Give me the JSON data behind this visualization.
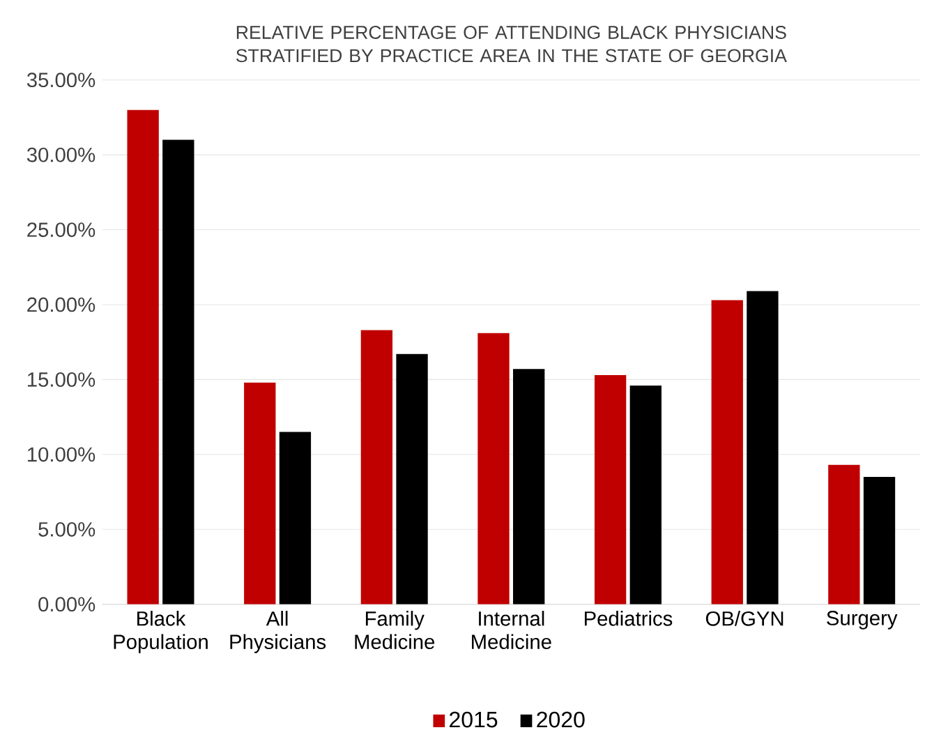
{
  "chart_data": {
    "type": "bar",
    "title": "RELATIVE PERCENTAGE OF ATTENDING BLACK PHYSICIANS STRATIFIED BY PRACTICE AREA IN THE STATE OF GEORGIA",
    "categories": [
      "Black Population",
      "All Physicians",
      "Family Medicine",
      "Internal Medicine",
      "Pediatrics",
      "OB/GYN",
      "Surgery"
    ],
    "series": [
      {
        "name": "2015",
        "color": "#c00000",
        "values": [
          33.0,
          14.8,
          18.3,
          18.1,
          15.3,
          20.3,
          9.3
        ]
      },
      {
        "name": "2020",
        "color": "#000000",
        "values": [
          31.0,
          11.5,
          16.7,
          15.7,
          14.6,
          20.9,
          8.5
        ]
      }
    ],
    "ylim": [
      0,
      35
    ],
    "yticks": [
      {
        "value": 0,
        "label": "0.00%"
      },
      {
        "value": 5,
        "label": "5.00%"
      },
      {
        "value": 10,
        "label": "10.00%"
      },
      {
        "value": 15,
        "label": "15.00%"
      },
      {
        "value": 20,
        "label": "20.00%"
      },
      {
        "value": 25,
        "label": "25.00%"
      },
      {
        "value": 30,
        "label": "30.00%"
      },
      {
        "value": 35,
        "label": "35.00%"
      }
    ],
    "grid": "y",
    "legend": "bottom"
  }
}
